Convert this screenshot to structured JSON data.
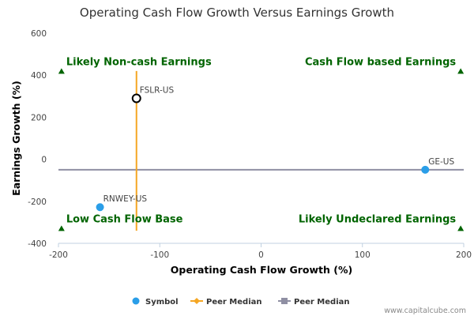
{
  "chart_data": {
    "type": "scatter",
    "title": "Operating Cash Flow Growth Versus Earnings Growth",
    "xlabel": "Operating Cash Flow Growth (%)",
    "ylabel": "Earnings Growth (%)",
    "xlim": [
      -200,
      200
    ],
    "ylim": [
      -400,
      600
    ],
    "x_ticks": [
      -200,
      -100,
      0,
      100,
      200
    ],
    "y_ticks": [
      -400,
      -200,
      0,
      200,
      400,
      600
    ],
    "points": [
      {
        "label": "FSLR-US",
        "x": -123,
        "y": 290,
        "style": "highlight"
      },
      {
        "label": "GE-US",
        "x": 162,
        "y": -50,
        "style": "normal"
      },
      {
        "label": "RNWEY-US",
        "x": -159,
        "y": -228,
        "style": "normal"
      }
    ],
    "peer_median_x": -123,
    "peer_median_y": -50,
    "quadrant_labels": [
      {
        "text": "Likely Non-cash Earnings",
        "position": "top-left",
        "marker_x": -197,
        "marker_y": 418
      },
      {
        "text": "Cash Flow based Earnings",
        "position": "top-right",
        "marker_x": 197,
        "marker_y": 418
      },
      {
        "text": "Low Cash Flow Base",
        "position": "bottom-left",
        "marker_x": -197,
        "marker_y": -330
      },
      {
        "text": "Likely Undeclared Earnings",
        "position": "bottom-right",
        "marker_x": 197,
        "marker_y": -330
      }
    ],
    "legend": [
      {
        "name": "Symbol",
        "color": "#2a9ee8",
        "shape": "circle"
      },
      {
        "name": "Peer Median",
        "color": "#f5a623",
        "shape": "diamond-line"
      },
      {
        "name": "Peer Median",
        "color": "#8f8fa3",
        "shape": "square-line"
      }
    ],
    "colors": {
      "point": "#2a9ee8",
      "highlight_stroke": "#000000",
      "vline": "#f5a623",
      "hline": "#8f8fa3",
      "quad_marker": "#006400"
    },
    "grid": false,
    "legend_position": "bottom-center"
  },
  "footer": "www.capitalcube.com"
}
